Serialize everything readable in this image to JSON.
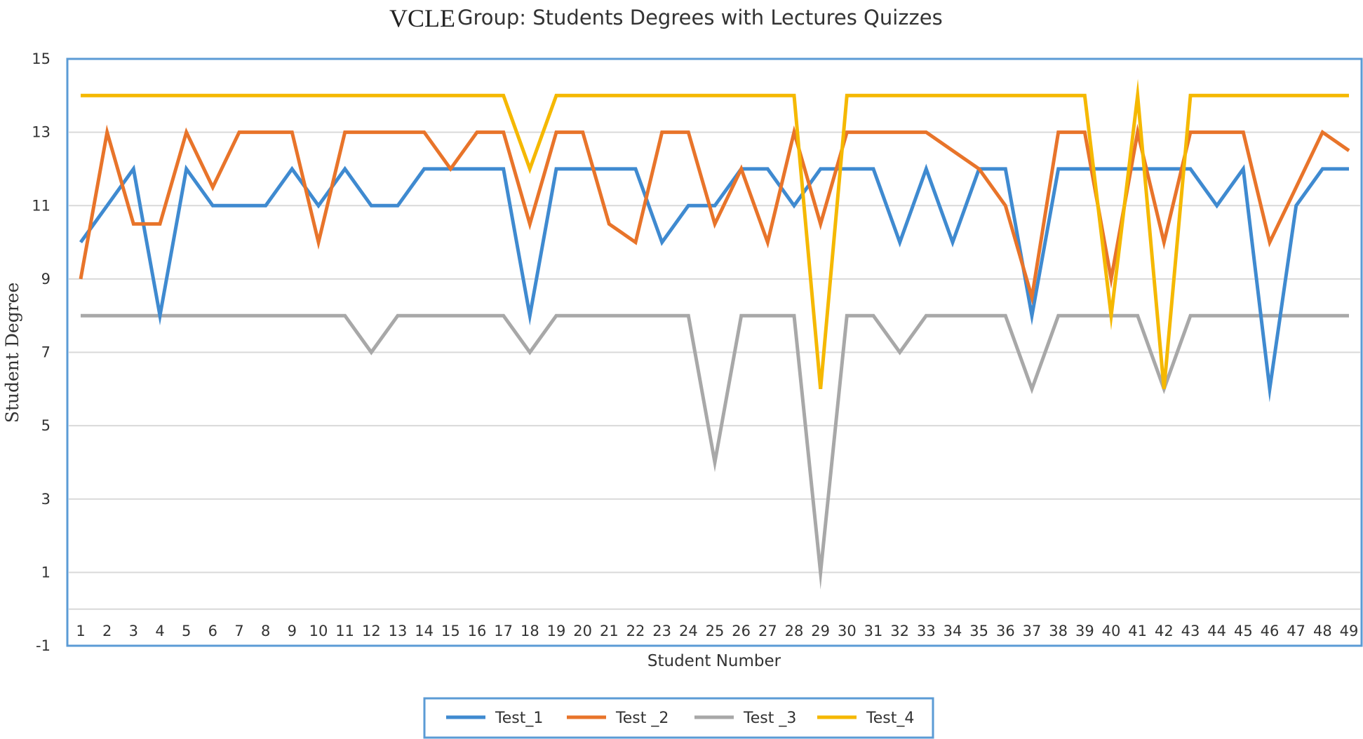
{
  "chart_data": {
    "type": "line",
    "title_prefix": "VCLE",
    "title": "Group: Students Degrees with Lectures Quizzes",
    "xlabel": "Student Number",
    "ylabel": "Student Degree",
    "ylim": [
      -1,
      15
    ],
    "yticks": [
      -1,
      1,
      3,
      5,
      7,
      9,
      11,
      13,
      15
    ],
    "grid": true,
    "legend_position": "bottom",
    "x": [
      1,
      2,
      3,
      4,
      5,
      6,
      7,
      8,
      9,
      10,
      11,
      12,
      13,
      14,
      15,
      16,
      17,
      18,
      19,
      20,
      21,
      22,
      23,
      24,
      25,
      26,
      27,
      28,
      29,
      30,
      31,
      32,
      33,
      34,
      35,
      36,
      37,
      38,
      39,
      40,
      41,
      42,
      43,
      44,
      45,
      46,
      47,
      48,
      49
    ],
    "series": [
      {
        "name": "Test_1",
        "color": "#3f8ad0",
        "values": [
          10,
          11,
          12,
          8,
          12,
          11,
          11,
          11,
          12,
          11,
          12,
          11,
          11,
          12,
          12,
          12,
          12,
          8,
          12,
          12,
          12,
          12,
          10,
          11,
          11,
          12,
          12,
          11,
          12,
          12,
          12,
          10,
          12,
          10,
          12,
          12,
          8,
          12,
          12,
          12,
          12,
          12,
          12,
          11,
          12,
          6,
          11,
          12,
          12
        ]
      },
      {
        "name": "Test _2",
        "color": "#e8742a",
        "values": [
          9,
          13,
          10.5,
          10.5,
          13,
          11.5,
          13,
          13,
          13,
          10,
          13,
          13,
          13,
          13,
          12,
          13,
          13,
          10.5,
          13,
          13,
          10.5,
          10,
          13,
          13,
          10.5,
          12,
          10,
          13,
          10.5,
          13,
          13,
          13,
          13,
          12.5,
          12,
          11,
          8.5,
          13,
          13,
          9,
          13,
          10,
          13,
          13,
          13,
          10,
          11.5,
          13,
          12.5
        ]
      },
      {
        "name": "Test _3",
        "color": "#a8a8a8",
        "values": [
          8,
          8,
          8,
          8,
          8,
          8,
          8,
          8,
          8,
          8,
          8,
          7,
          8,
          8,
          8,
          8,
          8,
          7,
          8,
          8,
          8,
          8,
          8,
          8,
          4,
          8,
          8,
          8,
          1,
          8,
          8,
          7,
          8,
          8,
          8,
          8,
          6,
          8,
          8,
          8,
          8,
          6,
          8,
          8,
          8,
          8,
          8,
          8,
          8
        ]
      },
      {
        "name": "Test_4",
        "color": "#f5b800",
        "values": [
          14,
          14,
          14,
          14,
          14,
          14,
          14,
          14,
          14,
          14,
          14,
          14,
          14,
          14,
          14,
          14,
          14,
          12,
          14,
          14,
          14,
          14,
          14,
          14,
          14,
          14,
          14,
          14,
          6,
          14,
          14,
          14,
          14,
          14,
          14,
          14,
          14,
          14,
          14,
          8,
          14,
          6,
          14,
          14,
          14,
          14,
          14,
          14,
          14
        ]
      }
    ],
    "plot_border_color": "#5b9bd5",
    "gridline_color": "#d9d9d9"
  }
}
